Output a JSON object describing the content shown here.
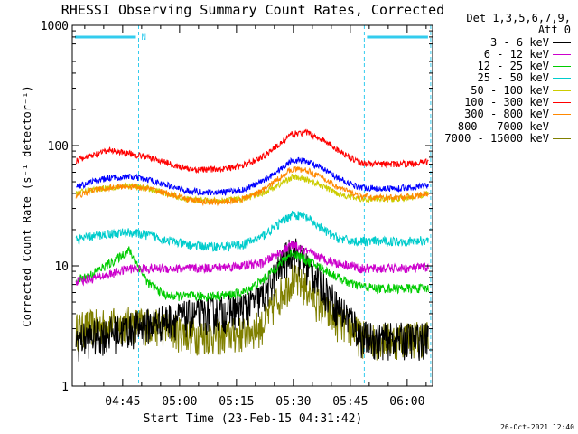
{
  "chart_data": {
    "type": "line",
    "title": "RHESSI Observing Summary Count Rates, Corrected",
    "xlabel": "Start Time (23-Feb-15 04:31:42)",
    "ylabel": "Corrected Count Rate (s⁻¹ detector⁻¹)",
    "yscale": "log",
    "ylim": [
      1,
      1000
    ],
    "xlim_minutes": [
      0,
      95
    ],
    "x_ticks": [
      {
        "label": "04:45",
        "t": 13.3
      },
      {
        "label": "05:00",
        "t": 28.3
      },
      {
        "label": "05:15",
        "t": 43.3
      },
      {
        "label": "05:30",
        "t": 58.3
      },
      {
        "label": "05:45",
        "t": 73.3
      },
      {
        "label": "06:00",
        "t": 88.3
      }
    ],
    "y_ticks": [
      {
        "label": "1",
        "v": 1
      },
      {
        "label": "10",
        "v": 10
      },
      {
        "label": "100",
        "v": 100
      },
      {
        "label": "1000",
        "v": 1000
      }
    ],
    "night_boundaries_minutes": [
      0,
      17.5,
      77.0,
      94.5
    ],
    "marker_label": "N",
    "legend_header": [
      "Det 1,3,5,6,7,9,",
      "Att 0"
    ],
    "series": [
      {
        "name": "3 - 6 keV",
        "color": "#000000",
        "x": [
          1,
          5,
          10,
          15,
          20,
          25,
          30,
          35,
          40,
          45,
          50,
          55,
          58,
          62,
          66,
          70,
          74,
          76,
          80,
          85,
          90,
          94
        ],
        "values": [
          2.4,
          2.6,
          2.8,
          3.0,
          3.3,
          3.6,
          3.8,
          4.0,
          4.2,
          4.5,
          5.5,
          10,
          14,
          10,
          7,
          4.5,
          3.5,
          2.6,
          2.5,
          2.5,
          2.5,
          2.5
        ]
      },
      {
        "name": "6 - 12 keV",
        "color": "#cc00cc",
        "x": [
          1,
          5,
          10,
          15,
          20,
          25,
          30,
          35,
          40,
          45,
          50,
          55,
          58,
          62,
          66,
          70,
          74,
          76,
          80,
          85,
          90,
          94
        ],
        "values": [
          7.5,
          7.8,
          8.5,
          9.5,
          9.5,
          9.5,
          9.5,
          9.6,
          9.8,
          10,
          10.5,
          13,
          15,
          13,
          11.5,
          10.5,
          10,
          9.5,
          9.5,
          9.5,
          9.6,
          9.8
        ]
      },
      {
        "name": "12 - 25 keV",
        "color": "#00cc00",
        "x": [
          1,
          5,
          10,
          15,
          20,
          25,
          30,
          35,
          40,
          45,
          50,
          55,
          58,
          62,
          66,
          70,
          74,
          76,
          80,
          85,
          90,
          94
        ],
        "values": [
          7.5,
          8.5,
          10.5,
          13.5,
          7.2,
          5.6,
          5.6,
          5.6,
          5.7,
          6.0,
          7.5,
          10.5,
          13,
          11,
          9.5,
          8.0,
          7.0,
          6.8,
          6.5,
          6.5,
          6.5,
          6.5
        ]
      },
      {
        "name": "25 - 50 keV",
        "color": "#00cccc",
        "x": [
          1,
          5,
          10,
          15,
          20,
          25,
          30,
          35,
          40,
          45,
          50,
          55,
          58,
          62,
          66,
          70,
          74,
          76,
          80,
          85,
          90,
          94
        ],
        "values": [
          16.5,
          17.5,
          18.5,
          19,
          18,
          16.5,
          15,
          14.5,
          14.5,
          15,
          17.5,
          23,
          27,
          25,
          20,
          17,
          16,
          16,
          16,
          16,
          16,
          16.5
        ]
      },
      {
        "name": "50 - 100 keV",
        "color": "#cccc00",
        "x": [
          1,
          5,
          10,
          15,
          20,
          25,
          30,
          35,
          40,
          45,
          50,
          55,
          58,
          62,
          66,
          70,
          74,
          76,
          80,
          85,
          90,
          94
        ],
        "values": [
          40,
          43,
          45,
          46,
          44,
          40,
          36,
          35,
          35,
          36,
          40,
          48,
          55,
          52,
          46,
          40,
          37,
          36,
          36,
          36,
          37,
          40
        ]
      },
      {
        "name": "100 - 300 keV",
        "color": "#ff0000",
        "x": [
          1,
          5,
          10,
          15,
          20,
          25,
          30,
          35,
          40,
          45,
          50,
          55,
          58,
          62,
          66,
          70,
          74,
          76,
          80,
          85,
          90,
          94
        ],
        "values": [
          75,
          82,
          92,
          86,
          80,
          72,
          64,
          63,
          64,
          68,
          80,
          105,
          125,
          128,
          112,
          92,
          78,
          72,
          70,
          70,
          71,
          74
        ]
      },
      {
        "name": "300 - 800 keV",
        "color": "#ff8800",
        "x": [
          1,
          5,
          10,
          15,
          20,
          25,
          30,
          35,
          40,
          45,
          50,
          55,
          58,
          62,
          66,
          70,
          74,
          76,
          80,
          85,
          90,
          94
        ],
        "values": [
          38,
          42,
          45,
          46,
          44,
          40,
          36,
          34,
          34,
          36,
          42,
          55,
          64,
          62,
          54,
          45,
          40,
          38,
          37,
          37,
          38,
          40
        ]
      },
      {
        "name": "800 - 7000 keV",
        "color": "#0000ff",
        "x": [
          1,
          5,
          10,
          15,
          20,
          25,
          30,
          35,
          40,
          45,
          50,
          55,
          58,
          62,
          66,
          70,
          74,
          76,
          80,
          85,
          90,
          94
        ],
        "values": [
          45,
          50,
          54,
          55,
          52,
          47,
          42,
          41,
          41,
          43,
          50,
          64,
          76,
          74,
          64,
          54,
          47,
          45,
          44,
          44,
          45,
          47
        ]
      },
      {
        "name": "7000 - 15000 keV",
        "color": "#808000",
        "x": [
          1,
          5,
          10,
          15,
          20,
          25,
          30,
          35,
          40,
          45,
          50,
          55,
          58,
          62,
          66,
          70,
          74,
          76,
          80,
          85,
          90,
          94
        ],
        "values": [
          3.0,
          3.2,
          3.3,
          3.4,
          3.3,
          3.1,
          2.8,
          2.7,
          2.7,
          2.8,
          3.2,
          6.0,
          8.0,
          6.5,
          4.5,
          3.5,
          3.0,
          2.6,
          2.5,
          2.5,
          2.6,
          2.6
        ]
      }
    ]
  },
  "footer_date": "26-Oct-2021 12:40"
}
